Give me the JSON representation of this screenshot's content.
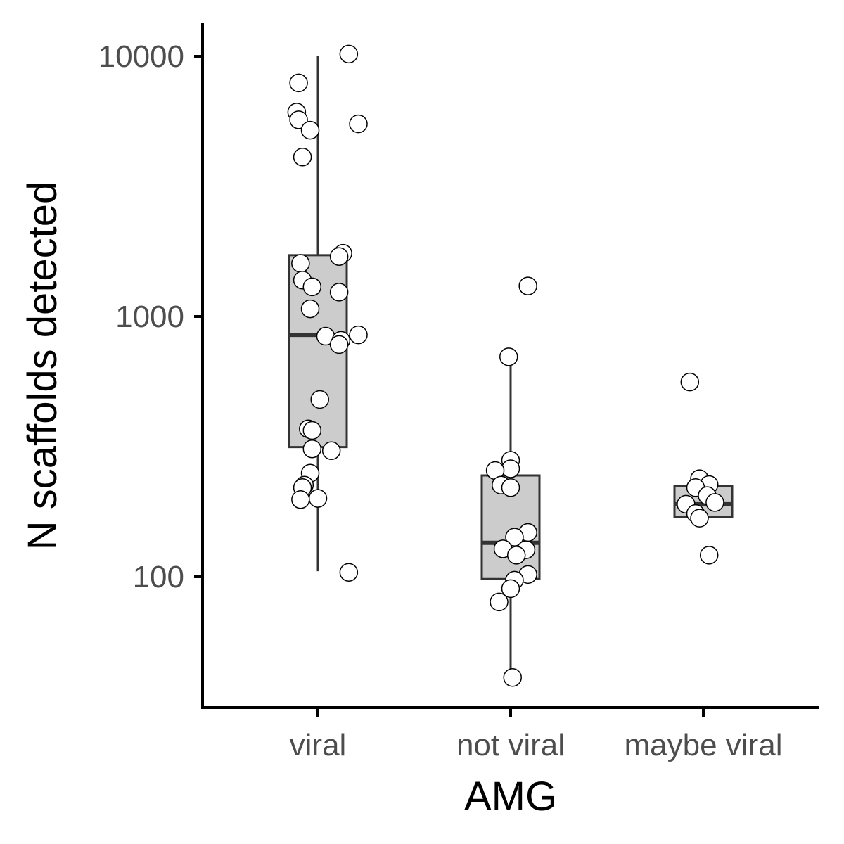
{
  "chart_data": {
    "type": "box",
    "xlabel": "AMG",
    "ylabel": "N scaffolds detected",
    "y_scale": "log10",
    "ylim": [
      31,
      11500
    ],
    "y_ticks": [
      {
        "value": 100,
        "label": "100"
      },
      {
        "value": 1000,
        "label": "1000"
      },
      {
        "value": 10000,
        "label": "10000"
      }
    ],
    "grid": false,
    "legend": "none",
    "categories": [
      "viral",
      "not viral",
      "maybe viral"
    ],
    "colors": {
      "box_fill": "#cccccc",
      "box_stroke": "#333333",
      "point_fill": "#ffffff",
      "point_stroke": "#000000",
      "axis": "#000000"
    },
    "boxes": [
      {
        "category": "viral",
        "whisker_low": 105,
        "q1": 315,
        "median": 850,
        "q3": 1720,
        "whisker_high": 10000
      },
      {
        "category": "not viral",
        "whisker_low": 38,
        "q1": 98,
        "median": 135,
        "q3": 245,
        "whisker_high": 650
      },
      {
        "category": "maybe viral",
        "whisker_low": 170,
        "q1": 170,
        "median": 190,
        "q3": 223,
        "whisker_high": 223
      }
    ],
    "points": [
      {
        "category": "viral",
        "jitter": 0.16,
        "value": 10200
      },
      {
        "category": "viral",
        "jitter": -0.1,
        "value": 7900
      },
      {
        "category": "viral",
        "jitter": -0.11,
        "value": 6100
      },
      {
        "category": "viral",
        "jitter": -0.1,
        "value": 5700
      },
      {
        "category": "viral",
        "jitter": 0.21,
        "value": 5500
      },
      {
        "category": "viral",
        "jitter": -0.04,
        "value": 5200
      },
      {
        "category": "viral",
        "jitter": -0.08,
        "value": 4100
      },
      {
        "category": "viral",
        "jitter": 0.13,
        "value": 1750
      },
      {
        "category": "viral",
        "jitter": 0.11,
        "value": 1700
      },
      {
        "category": "viral",
        "jitter": -0.09,
        "value": 1600
      },
      {
        "category": "viral",
        "jitter": -0.08,
        "value": 1380
      },
      {
        "category": "viral",
        "jitter": -0.03,
        "value": 1300
      },
      {
        "category": "viral",
        "jitter": 0.11,
        "value": 1240
      },
      {
        "category": "viral",
        "jitter": -0.04,
        "value": 1070
      },
      {
        "category": "viral",
        "jitter": 0.21,
        "value": 850
      },
      {
        "category": "viral",
        "jitter": 0.04,
        "value": 840
      },
      {
        "category": "viral",
        "jitter": 0.12,
        "value": 810
      },
      {
        "category": "viral",
        "jitter": 0.11,
        "value": 780
      },
      {
        "category": "viral",
        "jitter": 0.01,
        "value": 480
      },
      {
        "category": "viral",
        "jitter": -0.05,
        "value": 370
      },
      {
        "category": "viral",
        "jitter": -0.03,
        "value": 365
      },
      {
        "category": "viral",
        "jitter": -0.03,
        "value": 310
      },
      {
        "category": "viral",
        "jitter": 0.07,
        "value": 305
      },
      {
        "category": "viral",
        "jitter": -0.04,
        "value": 250
      },
      {
        "category": "viral",
        "jitter": -0.07,
        "value": 225
      },
      {
        "category": "viral",
        "jitter": -0.08,
        "value": 220
      },
      {
        "category": "viral",
        "jitter": 0.0,
        "value": 200
      },
      {
        "category": "viral",
        "jitter": -0.09,
        "value": 198
      },
      {
        "category": "viral",
        "jitter": 0.16,
        "value": 104
      },
      {
        "category": "not viral",
        "jitter": 0.09,
        "value": 1310
      },
      {
        "category": "not viral",
        "jitter": -0.01,
        "value": 700
      },
      {
        "category": "not viral",
        "jitter": 0.0,
        "value": 280
      },
      {
        "category": "not viral",
        "jitter": 0.0,
        "value": 260
      },
      {
        "category": "not viral",
        "jitter": -0.08,
        "value": 256
      },
      {
        "category": "not viral",
        "jitter": -0.05,
        "value": 225
      },
      {
        "category": "not viral",
        "jitter": 0.0,
        "value": 220
      },
      {
        "category": "not viral",
        "jitter": 0.09,
        "value": 148
      },
      {
        "category": "not viral",
        "jitter": 0.02,
        "value": 142
      },
      {
        "category": "not viral",
        "jitter": -0.04,
        "value": 128
      },
      {
        "category": "not viral",
        "jitter": 0.08,
        "value": 127
      },
      {
        "category": "not viral",
        "jitter": 0.03,
        "value": 121
      },
      {
        "category": "not viral",
        "jitter": 0.09,
        "value": 102
      },
      {
        "category": "not viral",
        "jitter": 0.02,
        "value": 97
      },
      {
        "category": "not viral",
        "jitter": 0.0,
        "value": 90
      },
      {
        "category": "not viral",
        "jitter": -0.06,
        "value": 80
      },
      {
        "category": "not viral",
        "jitter": 0.01,
        "value": 41
      },
      {
        "category": "maybe viral",
        "jitter": -0.07,
        "value": 560
      },
      {
        "category": "maybe viral",
        "jitter": -0.02,
        "value": 238
      },
      {
        "category": "maybe viral",
        "jitter": 0.03,
        "value": 226
      },
      {
        "category": "maybe viral",
        "jitter": -0.04,
        "value": 220
      },
      {
        "category": "maybe viral",
        "jitter": 0.02,
        "value": 205
      },
      {
        "category": "maybe viral",
        "jitter": 0.06,
        "value": 193
      },
      {
        "category": "maybe viral",
        "jitter": -0.09,
        "value": 190
      },
      {
        "category": "maybe viral",
        "jitter": -0.04,
        "value": 175
      },
      {
        "category": "maybe viral",
        "jitter": -0.02,
        "value": 168
      },
      {
        "category": "maybe viral",
        "jitter": 0.03,
        "value": 121
      }
    ]
  }
}
